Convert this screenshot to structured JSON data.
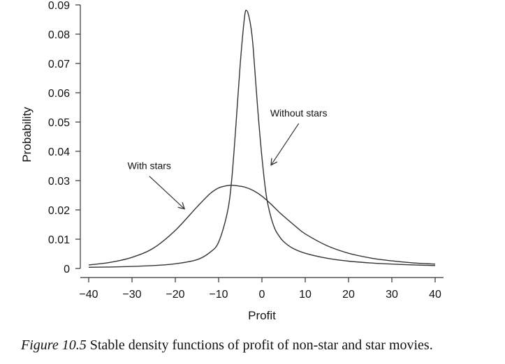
{
  "chart_data": {
    "type": "line",
    "title": "",
    "xlabel": "Profit",
    "ylabel": "Probability",
    "xlim": [
      -40,
      40
    ],
    "ylim": [
      0,
      0.09
    ],
    "x_ticks": [
      -40,
      -30,
      -20,
      -10,
      0,
      10,
      20,
      30,
      40
    ],
    "x_tick_labels": [
      "−40",
      "−30",
      "−20",
      "−10",
      "0",
      "10",
      "20",
      "30",
      "40"
    ],
    "y_ticks": [
      0,
      0.01,
      0.02,
      0.03,
      0.04,
      0.05,
      0.06,
      0.07,
      0.08,
      0.09
    ],
    "y_tick_labels": [
      "0",
      "0.01",
      "0.02",
      "0.03",
      "0.04",
      "0.05",
      "0.06",
      "0.07",
      "0.08",
      "0.09"
    ],
    "grid": false,
    "legend": "none",
    "line_color": "#333333",
    "series": [
      {
        "name": "Without stars",
        "x": [
          -40,
          -35,
          -30,
          -25,
          -20,
          -15,
          -12,
          -10,
          -8,
          -7,
          -6,
          -5,
          -4,
          -3.5,
          -3,
          -2.5,
          -2,
          -1,
          0,
          1,
          2,
          3,
          4,
          5,
          7,
          10,
          15,
          20,
          25,
          30,
          35,
          40
        ],
        "y": [
          0.0004,
          0.0005,
          0.0007,
          0.001,
          0.0016,
          0.003,
          0.0055,
          0.009,
          0.019,
          0.03,
          0.049,
          0.07,
          0.086,
          0.088,
          0.086,
          0.082,
          0.075,
          0.055,
          0.038,
          0.025,
          0.018,
          0.0135,
          0.011,
          0.0092,
          0.007,
          0.0052,
          0.0035,
          0.0025,
          0.0019,
          0.0015,
          0.0012,
          0.001
        ]
      },
      {
        "name": "With stars",
        "x": [
          -40,
          -35,
          -30,
          -25,
          -20,
          -15,
          -12,
          -10,
          -8,
          -7,
          -6,
          -4,
          -2,
          0,
          2,
          4,
          6,
          8,
          10,
          15,
          20,
          25,
          30,
          35,
          40
        ],
        "y": [
          0.0012,
          0.0021,
          0.0038,
          0.007,
          0.013,
          0.021,
          0.0255,
          0.0275,
          0.0283,
          0.0284,
          0.0283,
          0.0278,
          0.0266,
          0.0247,
          0.0221,
          0.0192,
          0.0166,
          0.0141,
          0.0118,
          0.0078,
          0.0052,
          0.0036,
          0.0026,
          0.0019,
          0.0015
        ]
      }
    ],
    "annotations": [
      {
        "text": "Without stars",
        "arrow_from": [
          8.5,
          0.0495
        ],
        "arrow_to": [
          2.2,
          0.0355
        ]
      },
      {
        "text": "With stars",
        "arrow_from": [
          -26,
          0.0315
        ],
        "arrow_to": [
          -18,
          0.0205
        ]
      }
    ]
  },
  "caption": {
    "label": "Figure 10.5",
    "text": " Stable density functions of profit of non-star and star movies."
  }
}
